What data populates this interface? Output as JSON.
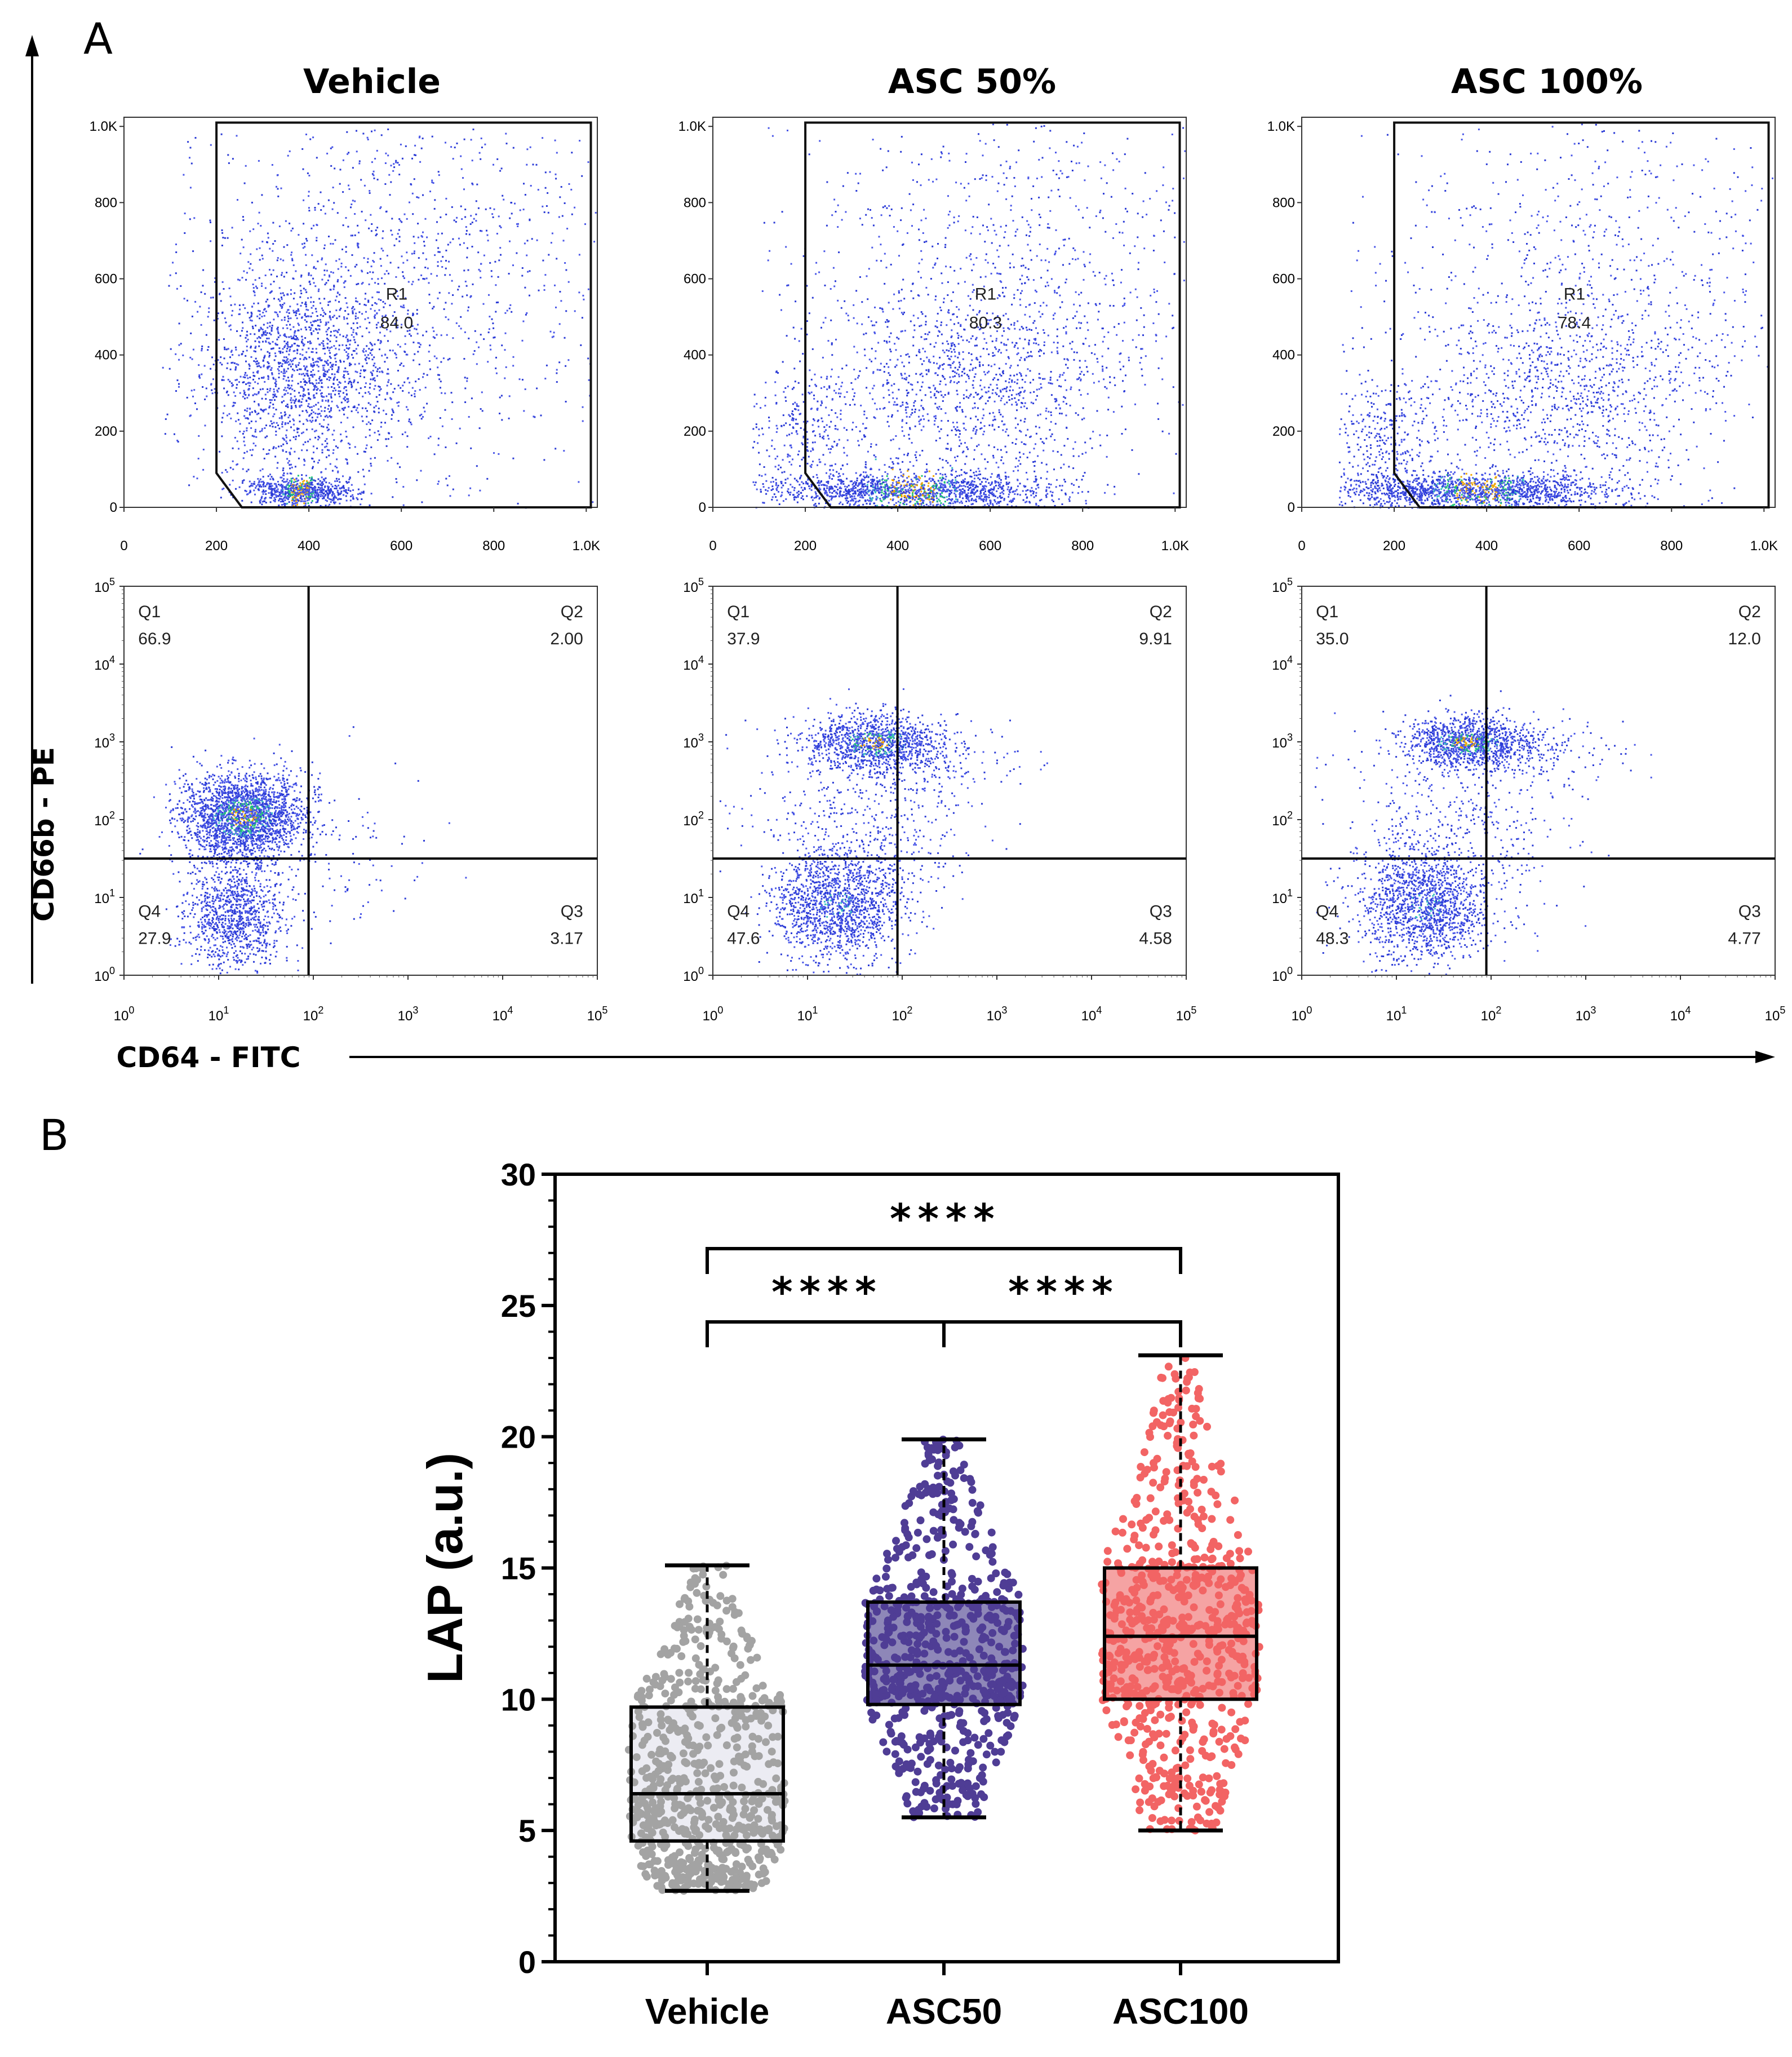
{
  "panel_labels": {
    "a": "A",
    "b": "B"
  },
  "panel_a": {
    "y_axis_label": "CD66b - PE",
    "x_axis_label": "CD64 - FITC",
    "columns": [
      "Vehicle",
      "ASC 50%",
      "ASC 100%"
    ],
    "fsc_ticks": [
      "0",
      "200",
      "400",
      "600",
      "800",
      "1.0K"
    ],
    "log_ticks": [
      {
        "base": "10",
        "exp": "0"
      },
      {
        "base": "10",
        "exp": "1"
      },
      {
        "base": "10",
        "exp": "2"
      },
      {
        "base": "10",
        "exp": "3"
      },
      {
        "base": "10",
        "exp": "4"
      },
      {
        "base": "10",
        "exp": "5"
      }
    ]
  },
  "chart_data": [
    {
      "type": "scatter",
      "panel": "A (top row)",
      "title": "",
      "xlim": [
        0,
        1024
      ],
      "ylim": [
        0,
        1024
      ],
      "gate": {
        "name": "R1"
      },
      "series": [
        {
          "name": "Vehicle",
          "gate_value": "84.0"
        },
        {
          "name": "ASC 50%",
          "gate_value": "80.3"
        },
        {
          "name": "ASC 100%",
          "gate_value": "78.4"
        }
      ]
    },
    {
      "type": "scatter",
      "panel": "A (bottom row)",
      "xlabel": "CD64 - FITC",
      "ylabel": "CD66b - PE",
      "scale": "log",
      "xlim": [
        1,
        100000
      ],
      "ylim": [
        1,
        100000
      ],
      "quadrant_labels": [
        "Q1",
        "Q2",
        "Q3",
        "Q4"
      ],
      "series": [
        {
          "name": "Vehicle",
          "Q1": "66.9",
          "Q2": "2.00",
          "Q3": "3.17",
          "Q4": "27.9"
        },
        {
          "name": "ASC 50%",
          "Q1": "37.9",
          "Q2": "9.91",
          "Q3": "4.58",
          "Q4": "47.6"
        },
        {
          "name": "ASC 100%",
          "Q1": "35.0",
          "Q2": "12.0",
          "Q3": "4.77",
          "Q4": "48.3"
        }
      ]
    },
    {
      "type": "box",
      "panel": "B",
      "ylabel": "LAP (a.u.)",
      "ylim": [
        0,
        30
      ],
      "yticks": [
        "0",
        "5",
        "10",
        "15",
        "20",
        "25",
        "30"
      ],
      "categories": [
        "Vehicle",
        "ASC50",
        "ASC100"
      ],
      "series": [
        {
          "name": "Vehicle",
          "color": "#a3a3a3",
          "box_fill": "#ececf3",
          "min": 2.7,
          "q1": 4.6,
          "median": 6.4,
          "q3": 9.7,
          "max": 15.1
        },
        {
          "name": "ASC50",
          "color": "#4f3d95",
          "box_fill": "#8e87b8",
          "min": 5.5,
          "q1": 9.8,
          "median": 11.3,
          "q3": 13.7,
          "max": 19.9
        },
        {
          "name": "ASC100",
          "color": "#f26464",
          "box_fill": "#f5a3a3",
          "min": 5.0,
          "q1": 10.0,
          "median": 12.4,
          "q3": 15.0,
          "max": 23.1
        }
      ],
      "significance": [
        {
          "pair": [
            "Vehicle",
            "ASC50"
          ],
          "label": "****"
        },
        {
          "pair": [
            "ASC50",
            "ASC100"
          ],
          "label": "****"
        },
        {
          "pair": [
            "Vehicle",
            "ASC100"
          ],
          "label": "****"
        }
      ]
    }
  ]
}
